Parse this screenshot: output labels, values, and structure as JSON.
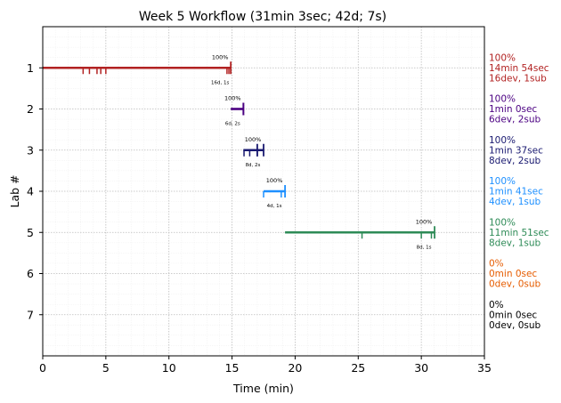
{
  "chart_data": {
    "type": "timeline",
    "title": "Week 5 Workflow (31min 3sec; 42d; 7s)",
    "xlabel": "Time (min)",
    "ylabel": "Lab #",
    "xlim": [
      0,
      35
    ],
    "ylim": [
      0,
      8
    ],
    "grid": true,
    "x_ticks": [
      0,
      5,
      10,
      15,
      20,
      25,
      30,
      35
    ],
    "y_ticks": [
      1,
      2,
      3,
      4,
      5,
      6,
      7
    ],
    "labs": [
      {
        "lab": 1,
        "color": "#b22222",
        "start": 0,
        "end": 14.9,
        "dev_marks": [
          3.2,
          3.7,
          4.3,
          4.6,
          5.0,
          14.6,
          14.75
        ],
        "sub_marks": [
          14.9
        ],
        "pct_label": "100%",
        "count_label": "16d, 1s",
        "side_lines": [
          "100%",
          "14min 54sec",
          "16dev, 1sub"
        ]
      },
      {
        "lab": 2,
        "color": "#4b0082",
        "start": 14.9,
        "end": 15.9,
        "dev_marks": [],
        "sub_marks": [
          15.9,
          15.9
        ],
        "pct_label": "100%",
        "count_label": "6d, 2s",
        "side_lines": [
          "100%",
          "1min 0sec",
          "6dev, 2sub"
        ]
      },
      {
        "lab": 3,
        "color": "#191970",
        "start": 15.9,
        "end": 17.5,
        "dev_marks": [
          15.95,
          16.4,
          17.0
        ],
        "sub_marks": [
          17.0,
          17.5
        ],
        "pct_label": "100%",
        "count_label": "8d, 2s",
        "side_lines": [
          "100%",
          "1min 37sec",
          "8dev, 2sub"
        ]
      },
      {
        "lab": 4,
        "color": "#1e90ff",
        "start": 17.5,
        "end": 19.2,
        "dev_marks": [
          17.5,
          18.9
        ],
        "sub_marks": [
          19.2
        ],
        "pct_label": "100%",
        "count_label": "4d, 1s",
        "side_lines": [
          "100%",
          "1min 41sec",
          "4dev, 1sub"
        ]
      },
      {
        "lab": 5,
        "color": "#2e8b57",
        "start": 19.2,
        "end": 31.05,
        "dev_marks": [
          25.3,
          30.0,
          30.8
        ],
        "sub_marks": [
          31.05
        ],
        "pct_label": "100%",
        "count_label": "8d, 1s",
        "side_lines": [
          "100%",
          "11min 51sec",
          "8dev, 1sub"
        ]
      },
      {
        "lab": 6,
        "color": "#e65c00",
        "start": null,
        "end": null,
        "dev_marks": [],
        "sub_marks": [],
        "pct_label": "",
        "count_label": "",
        "side_lines": [
          "0%",
          "0min 0sec",
          "0dev, 0sub"
        ]
      },
      {
        "lab": 7,
        "color": "#000000",
        "start": null,
        "end": null,
        "dev_marks": [],
        "sub_marks": [],
        "pct_label": "",
        "count_label": "",
        "side_lines": [
          "0%",
          "0min 0sec",
          "0dev, 0sub"
        ]
      }
    ]
  }
}
